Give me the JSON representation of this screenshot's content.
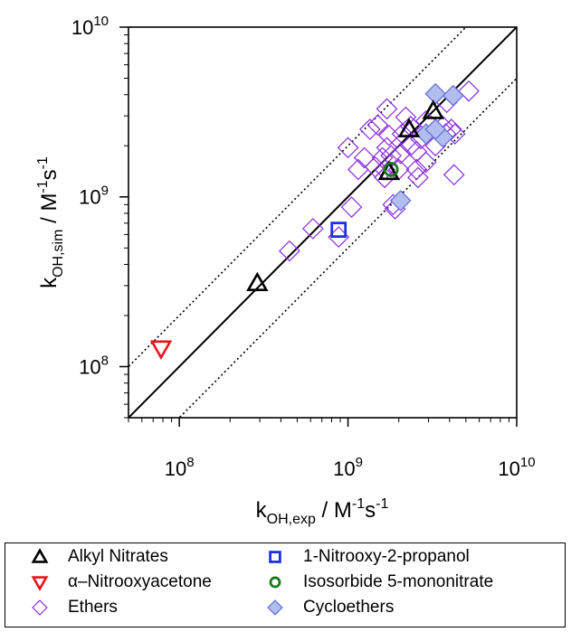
{
  "chart_data": {
    "type": "scatter",
    "xscale": "log",
    "yscale": "log",
    "xlim": [
      50000000,
      10000000000
    ],
    "ylim": [
      50000000,
      10000000000
    ],
    "grid": false,
    "legend_position": "bottom",
    "xlabel": {
      "base": "k",
      "sub": "OH,exp",
      "mid": " / M",
      "sup1": "-1",
      "mid2": "s",
      "sup2": "-1"
    },
    "ylabel": {
      "base": "k",
      "sub": "OH,sim",
      "mid": " / M",
      "sup1": "-1",
      "mid2": "s",
      "sup2": "-1"
    },
    "xticks": [
      {
        "value": 100000000,
        "base": "10",
        "exp": "8"
      },
      {
        "value": 1000000000,
        "base": "10",
        "exp": "9"
      },
      {
        "value": 10000000000,
        "base": "10",
        "exp": "10"
      }
    ],
    "yticks": [
      {
        "value": 100000000,
        "base": "10",
        "exp": "8"
      },
      {
        "value": 1000000000,
        "base": "10",
        "exp": "9"
      },
      {
        "value": 10000000000,
        "base": "10",
        "exp": "10"
      }
    ],
    "reference_lines": [
      {
        "style": "solid",
        "factor": 1
      },
      {
        "style": "dotted",
        "factor": 2
      },
      {
        "style": "dotted",
        "factor": 0.5
      }
    ],
    "series": [
      {
        "name": "Ethers",
        "marker": "diamond-open",
        "color": "#8a2be2",
        "points": [
          [
            1000000000,
            1950000000
          ],
          [
            2550000000,
            1850000000
          ],
          [
            3850000000,
            3600000000
          ],
          [
            4300000000,
            2350000000
          ],
          [
            1700000000,
            3300000000
          ],
          [
            2900000000,
            1600000000
          ],
          [
            1450000000,
            1500000000
          ],
          [
            450000000,
            480000000
          ],
          [
            880000000,
            580000000
          ],
          [
            620000000,
            650000000
          ],
          [
            1050000000,
            870000000
          ],
          [
            1750000000,
            2300000000
          ],
          [
            2700000000,
            2200000000
          ],
          [
            2050000000,
            1800000000
          ],
          [
            1250000000,
            1700000000
          ],
          [
            3800000000,
            2350000000
          ],
          [
            2000000000,
            1450000000
          ],
          [
            1650000000,
            1450000000
          ],
          [
            1600000000,
            1700000000
          ],
          [
            2200000000,
            2950000000
          ],
          [
            5200000000,
            4200000000
          ],
          [
            2350000000,
            2600000000
          ],
          [
            2550000000,
            1450000000
          ],
          [
            2900000000,
            2800000000
          ],
          [
            1700000000,
            1950000000
          ],
          [
            1800000000,
            1750000000
          ],
          [
            1150000000,
            1450000000
          ],
          [
            1350000000,
            2500000000
          ],
          [
            3300000000,
            2000000000
          ],
          [
            4100000000,
            2500000000
          ],
          [
            1500000000,
            2650000000
          ],
          [
            4250000000,
            1350000000
          ],
          [
            1900000000,
            850000000
          ],
          [
            2600000000,
            1300000000
          ],
          [
            1650000000,
            1300000000
          ],
          [
            3650000000,
            2600000000
          ],
          [
            2100000000,
            2350000000
          ],
          [
            1850000000,
            900000000
          ],
          [
            2350000000,
            2000000000
          ]
        ]
      },
      {
        "name": "Cycloethers",
        "marker": "diamond-filled",
        "color": "#5c6fd6",
        "fill": "#b3bcef",
        "points": [
          [
            3300000000,
            4050000000
          ],
          [
            4200000000,
            3950000000
          ],
          [
            2900000000,
            2350000000
          ],
          [
            3650000000,
            2250000000
          ],
          [
            2050000000,
            950000000
          ],
          [
            3300000000,
            2500000000
          ]
        ]
      },
      {
        "name": "Alkyl Nitrates",
        "marker": "triangle-up-open",
        "color": "#000000",
        "points": [
          [
            3200000000,
            3200000000
          ],
          [
            2300000000,
            2500000000
          ],
          [
            1750000000,
            1400000000
          ],
          [
            290000000,
            310000000
          ]
        ]
      },
      {
        "name": "α–Nitrooxyacetone",
        "marker": "triangle-down-open",
        "color": "#e8141b",
        "points": [
          [
            78000000,
            128000000
          ]
        ]
      },
      {
        "name": "1-Nitrooxy-2-propanol",
        "marker": "square-open",
        "color": "#1f2fe6",
        "points": [
          [
            880000000,
            640000000
          ]
        ]
      },
      {
        "name": "Isosorbide 5-mononitrate",
        "marker": "circle-open",
        "color": "#1a7a1a",
        "points": [
          [
            1800000000,
            1450000000
          ]
        ]
      }
    ]
  },
  "legend": {
    "items": [
      {
        "label": "Alkyl Nitrates",
        "marker": "triangle-up-open",
        "color": "#000000"
      },
      {
        "label": "1-Nitrooxy-2-propanol",
        "marker": "square-open",
        "color": "#1f2fe6"
      },
      {
        "label": "α–Nitrooxyacetone",
        "marker": "triangle-down-open",
        "color": "#e8141b"
      },
      {
        "label": "Isosorbide 5-mononitrate",
        "marker": "circle-open",
        "color": "#1a7a1a"
      },
      {
        "label": "Ethers",
        "marker": "diamond-open",
        "color": "#8a2be2"
      },
      {
        "label": "Cycloethers",
        "marker": "diamond-filled",
        "color": "#5c6fd6",
        "fill": "#b3bcef"
      }
    ]
  }
}
